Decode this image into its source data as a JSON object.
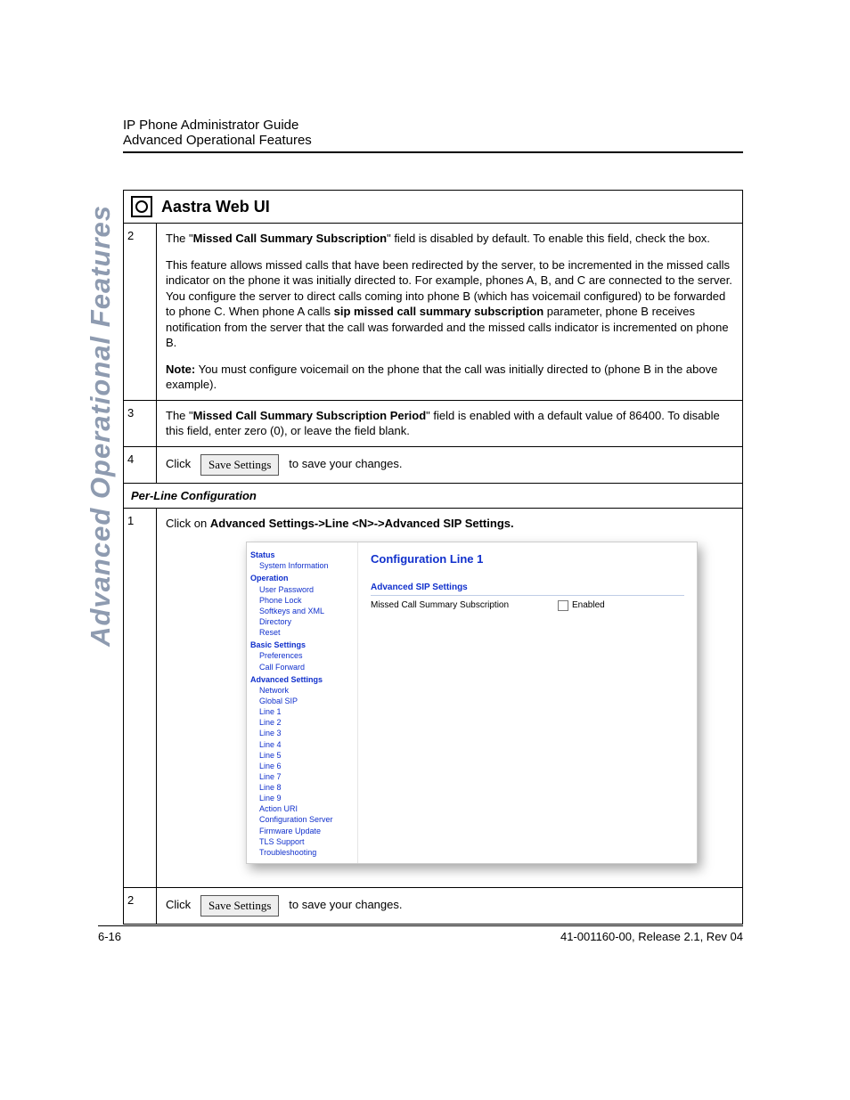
{
  "header": {
    "line1": "IP Phone Administrator Guide",
    "line2": "Advanced Operational Features"
  },
  "sidetext": "Advanced Operational Features",
  "ui_title": "Aastra Web UI",
  "rows": {
    "r2": {
      "num": "2",
      "p1a": "The \"",
      "p1b": "Missed Call Summary Subscription",
      "p1c": "\" field is disabled by default. To enable this field, check the box.",
      "p2a": "This feature allows missed calls that have been redirected by the server, to be incremented in the missed calls indicator on the phone it was initially directed to. For example, phones A, B, and C are connected to the server. You configure the server to direct calls coming into phone B (which has voicemail configured) to be forwarded to phone C. When phone A calls ",
      "p2b": "sip missed call summary subscription",
      "p2c": " parameter, phone B receives notification from the server that the call was forwarded and the missed calls indicator is incremented on phone B.",
      "noteLabel": "Note:",
      "noteText": " You must configure voicemail on the phone that the call was initially directed to (phone B in the above example)."
    },
    "r3": {
      "num": "3",
      "a": "The \"",
      "b": "Missed Call Summary Subscription Period",
      "c": "\" field is enabled with a default value of 86400. To disable this field, enter zero (0), or leave the field blank."
    },
    "r4": {
      "num": "4",
      "click": "Click",
      "btn": "Save Settings",
      "after": "to save your changes."
    }
  },
  "section_header": "Per-Line Configuration",
  "perline": {
    "r1": {
      "num": "1",
      "a": "Click on ",
      "b": "Advanced Settings->Line <N>->Advanced SIP Settings."
    },
    "r2": {
      "num": "2",
      "click": "Click",
      "btn": "Save Settings",
      "after": "to save your changes."
    }
  },
  "nav": {
    "g1": "Status",
    "g1i1": "System Information",
    "g2": "Operation",
    "g2i1": "User Password",
    "g2i2": "Phone Lock",
    "g2i3": "Softkeys and XML",
    "g2i4": "Directory",
    "g2i5": "Reset",
    "g3": "Basic Settings",
    "g3i1": "Preferences",
    "g3i2": "Call Forward",
    "g4": "Advanced Settings",
    "g4i1": "Network",
    "g4i2": "Global SIP",
    "g4i3": "Line 1",
    "g4i4": "Line 2",
    "g4i5": "Line 3",
    "g4i6": "Line 4",
    "g4i7": "Line 5",
    "g4i8": "Line 6",
    "g4i9": "Line 7",
    "g4i10": "Line 8",
    "g4i11": "Line 9",
    "g4i12": "Action URI",
    "g4i13": "Configuration Server",
    "g4i14": "Firmware Update",
    "g4i15": "TLS Support",
    "g4i16": "Troubleshooting"
  },
  "content_pane": {
    "title": "Configuration Line 1",
    "subsection": "Advanced SIP Settings",
    "setting": "Missed Call Summary Subscription",
    "enabled": "Enabled"
  },
  "footer": {
    "left": "6-16",
    "right": "41-001160-00, Release 2.1, Rev 04"
  }
}
